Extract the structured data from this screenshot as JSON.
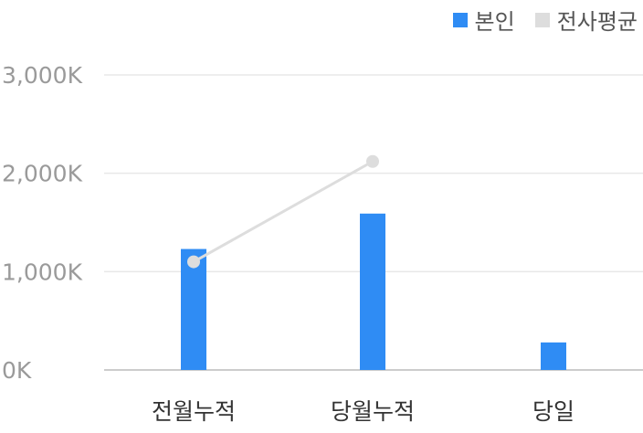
{
  "chart_data": {
    "type": "bar",
    "categories": [
      "전월누적",
      "당월누적",
      "당일"
    ],
    "series": [
      {
        "name": "본인",
        "type": "bar",
        "color": "#2f8cf4",
        "values": [
          1230,
          1590,
          280
        ]
      },
      {
        "name": "전사평균",
        "type": "line",
        "color": "#dddddd",
        "values": [
          1100,
          2120,
          null
        ]
      }
    ],
    "y_ticks": [
      {
        "value": 0,
        "label": "0K"
      },
      {
        "value": 1000,
        "label": "1,000K"
      },
      {
        "value": 2000,
        "label": "2,000K"
      },
      {
        "value": 3000,
        "label": "3,000K"
      }
    ],
    "ylim": [
      0,
      3000
    ],
    "grid": true,
    "legend_position": "top-right",
    "axis_color": "#cccccc",
    "grid_color": "#e8e8e8"
  }
}
